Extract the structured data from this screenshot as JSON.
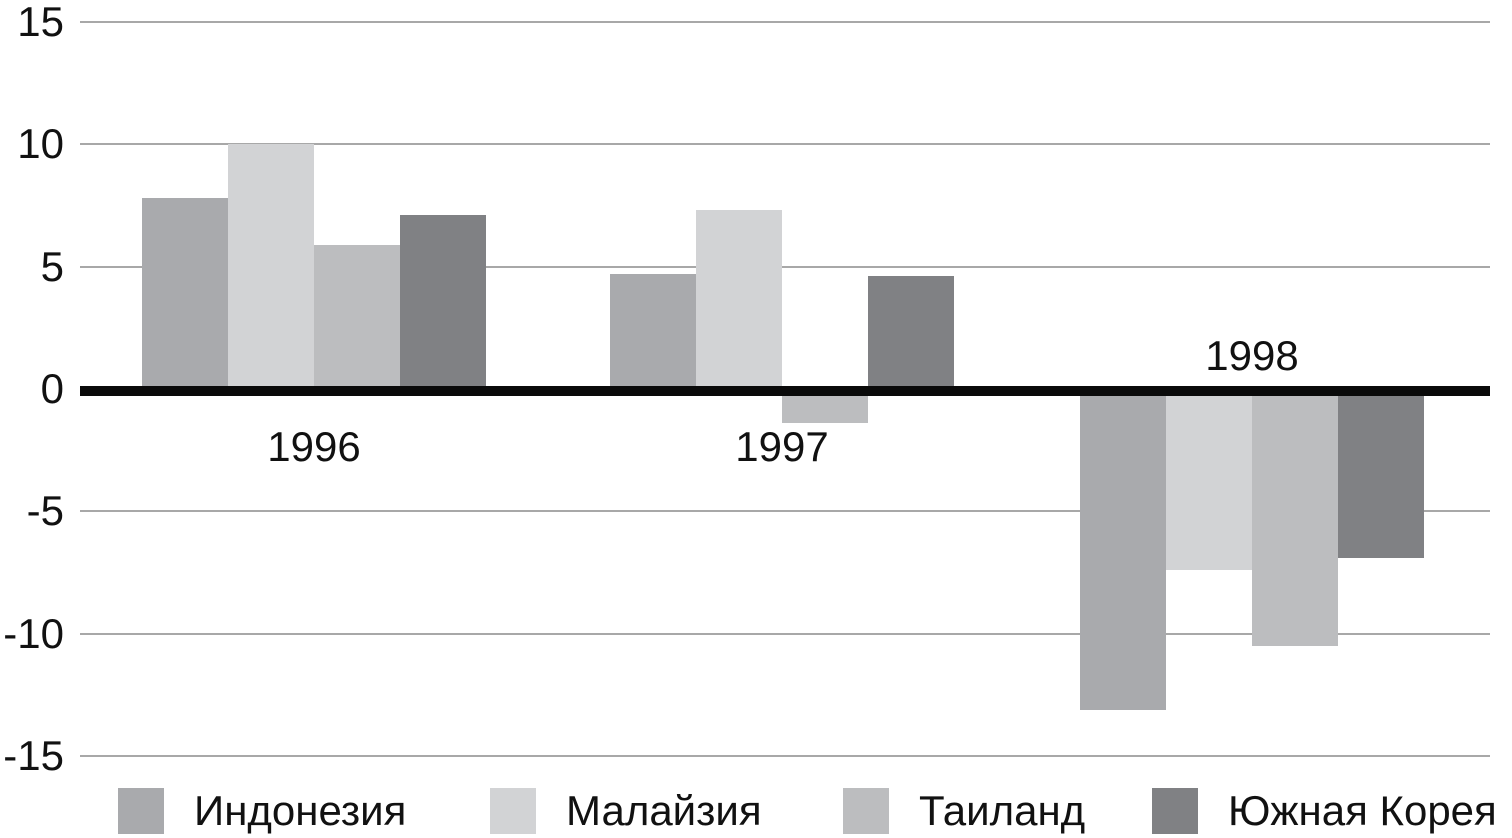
{
  "chart_data": {
    "type": "bar",
    "title": "",
    "xlabel": "",
    "ylabel": "",
    "categories": [
      "1996",
      "1997",
      "1998"
    ],
    "series": [
      {
        "key": "indonesia",
        "name": "Индонезия",
        "color": "#a9aaad",
        "values": [
          7.8,
          4.7,
          -13.1
        ]
      },
      {
        "key": "malaysia",
        "name": "Малайзия",
        "color": "#d2d3d5",
        "values": [
          10.0,
          7.3,
          -7.4
        ]
      },
      {
        "key": "thailand",
        "name": "Таиланд",
        "color": "#bcbdbf",
        "values": [
          5.9,
          -1.4,
          -10.5
        ]
      },
      {
        "key": "south-korea",
        "name": "Южная Корея",
        "color": "#808184",
        "values": [
          7.1,
          4.6,
          -6.9
        ]
      }
    ],
    "y_ticks": [
      15,
      10,
      5,
      0,
      -5,
      -10,
      -15
    ],
    "ylim": [
      -15,
      15
    ],
    "grid": true,
    "gridline_color": "#a8a8a8",
    "zero_axis_color": "#0a0a0a",
    "legend_position": "bottom"
  }
}
